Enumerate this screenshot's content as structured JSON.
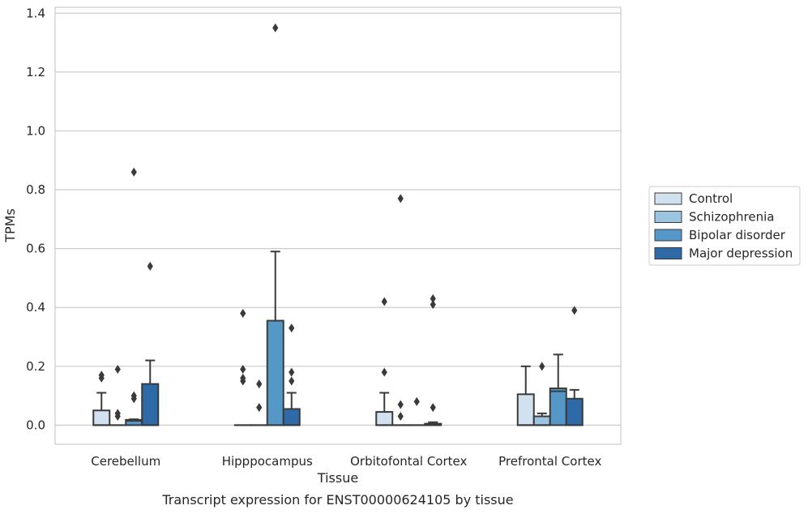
{
  "caption": "Transcript expression for ENST00000624105 by tissue",
  "chart_data": {
    "type": "box",
    "title": "",
    "xlabel": "Tissue",
    "ylabel": "TPMs",
    "ylim": [
      -0.065,
      1.42
    ],
    "yticks": [
      "0.0",
      "0.2",
      "0.4",
      "0.6",
      "0.8",
      "1.0",
      "1.2",
      "1.4"
    ],
    "ytick_values": [
      0.0,
      0.2,
      0.4,
      0.6,
      0.8,
      1.0,
      1.2,
      1.4
    ],
    "grid": "horizontal",
    "legend_position": "right",
    "categories": [
      "Cerebellum",
      "Hipppocampus",
      "Orbitofontal Cortex",
      "Prefrontal Cortex"
    ],
    "series": [
      {
        "name": "Control",
        "color": "#d1e1f0",
        "boxes": [
          {
            "whisker_low": 0.0,
            "q1": 0.0,
            "median": 0.0,
            "q3": 0.05,
            "whisker_high": 0.11,
            "outliers": [
              0.16,
              0.17
            ]
          },
          {
            "whisker_low": 0.0,
            "q1": 0.0,
            "median": 0.0,
            "q3": 0.0,
            "whisker_high": 0.0,
            "outliers": [
              0.15,
              0.16,
              0.19,
              0.38
            ]
          },
          {
            "whisker_low": 0.0,
            "q1": 0.0,
            "median": 0.0,
            "q3": 0.045,
            "whisker_high": 0.11,
            "outliers": [
              0.18,
              0.42
            ]
          },
          {
            "whisker_low": 0.0,
            "q1": 0.0,
            "median": 0.0,
            "q3": 0.105,
            "whisker_high": 0.2,
            "outliers": []
          }
        ]
      },
      {
        "name": "Schizophrenia",
        "color": "#9ac4e0",
        "boxes": [
          {
            "whisker_low": 0.0,
            "q1": 0.0,
            "median": 0.0,
            "q3": 0.0,
            "whisker_high": 0.0,
            "outliers": [
              0.03,
              0.04,
              0.19
            ]
          },
          {
            "whisker_low": 0.0,
            "q1": 0.0,
            "median": 0.0,
            "q3": 0.0,
            "whisker_high": 0.0,
            "outliers": [
              0.06,
              0.14
            ]
          },
          {
            "whisker_low": 0.0,
            "q1": 0.0,
            "median": 0.0,
            "q3": 0.0,
            "whisker_high": 0.0,
            "outliers": [
              0.03,
              0.07,
              0.77
            ]
          },
          {
            "whisker_low": 0.0,
            "q1": 0.0,
            "median": 0.0,
            "q3": 0.03,
            "whisker_high": 0.04,
            "outliers": [
              0.2
            ]
          }
        ]
      },
      {
        "name": "Bipolar disorder",
        "color": "#5598c8",
        "boxes": [
          {
            "whisker_low": 0.0,
            "q1": 0.0,
            "median": 0.015,
            "q3": 0.018,
            "whisker_high": 0.02,
            "outliers": [
              0.09,
              0.1,
              0.86
            ]
          },
          {
            "whisker_low": 0.0,
            "q1": 0.0,
            "median": 0.0,
            "q3": 0.355,
            "whisker_high": 0.59,
            "outliers": [
              1.35
            ]
          },
          {
            "whisker_low": 0.0,
            "q1": 0.0,
            "median": 0.0,
            "q3": 0.0,
            "whisker_high": 0.0,
            "outliers": [
              0.08
            ]
          },
          {
            "whisker_low": 0.0,
            "q1": 0.0,
            "median": 0.115,
            "q3": 0.125,
            "whisker_high": 0.24,
            "outliers": []
          }
        ]
      },
      {
        "name": "Major depression",
        "color": "#2f6aa8",
        "boxes": [
          {
            "whisker_low": 0.0,
            "q1": 0.0,
            "median": 0.0,
            "q3": 0.14,
            "whisker_high": 0.22,
            "outliers": [
              0.54
            ]
          },
          {
            "whisker_low": 0.0,
            "q1": 0.0,
            "median": 0.0,
            "q3": 0.055,
            "whisker_high": 0.11,
            "outliers": [
              0.15,
              0.18,
              0.33
            ]
          },
          {
            "whisker_low": 0.0,
            "q1": 0.0,
            "median": 0.0,
            "q3": 0.005,
            "whisker_high": 0.01,
            "outliers": [
              0.06,
              0.41,
              0.43
            ]
          },
          {
            "whisker_low": 0.0,
            "q1": 0.0,
            "median": 0.0,
            "q3": 0.09,
            "whisker_high": 0.12,
            "outliers": [
              0.39
            ]
          }
        ]
      }
    ]
  }
}
